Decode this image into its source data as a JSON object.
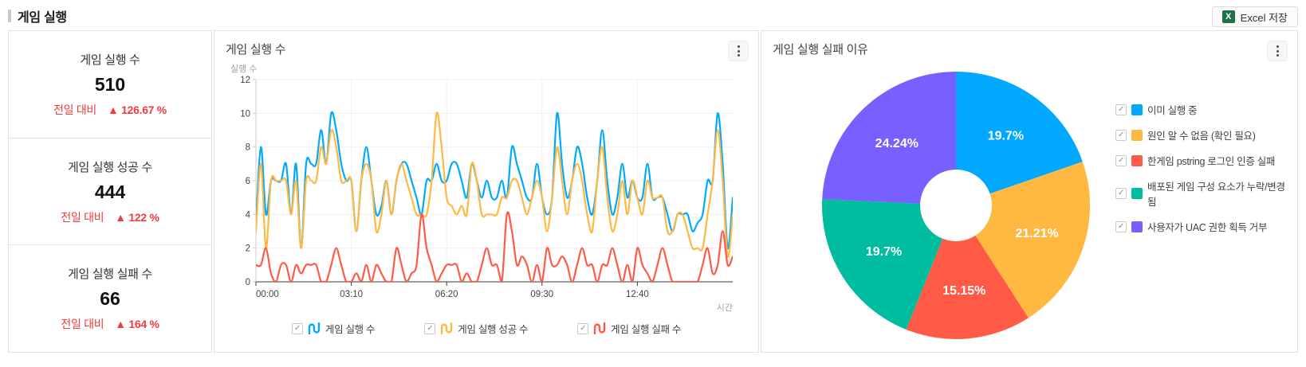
{
  "page": {
    "title": "게임 실행"
  },
  "toolbar": {
    "excel_button": "Excel 저장",
    "excel_icon_letter": "X"
  },
  "stats": [
    {
      "label": "게임 실행 수",
      "value": "510",
      "delta_label": "전일 대비",
      "delta": "▲ 126.67 %"
    },
    {
      "label": "게임 실행 성공 수",
      "value": "444",
      "delta_label": "전일 대비",
      "delta": "▲ 122 %"
    },
    {
      "label": "게임 실행 실패 수",
      "value": "66",
      "delta_label": "전일 대비",
      "delta": "▲ 164 %"
    }
  ],
  "colors": {
    "blue": "#00a9ff",
    "orange": "#ffb840",
    "red": "#ff5a46",
    "teal": "#00bd9f",
    "purple": "#785fff",
    "delta_red": "#f03c3c",
    "excel_green": "#1e7145"
  },
  "chart_data": [
    {
      "type": "line",
      "title": "게임 실행 수",
      "xlabel": "시간",
      "ylabel": "실행 수",
      "ylim": [
        0,
        12
      ],
      "yticks": [
        0,
        2,
        4,
        6,
        8,
        10,
        12
      ],
      "xticks": [
        "00:00",
        "03:10",
        "06:20",
        "09:30",
        "12:40"
      ],
      "xtick_index_step": 19,
      "x_interval_minutes": 10,
      "grid": true,
      "legend_position": "bottom",
      "series": [
        {
          "name": "게임 실행 수",
          "color": "#00a9ff",
          "values": [
            3.5,
            8,
            4,
            6,
            6,
            6,
            7,
            4,
            7,
            2,
            7,
            7,
            7,
            9,
            7,
            10,
            9,
            7,
            6,
            6,
            3,
            6,
            8,
            6,
            4,
            4.5,
            6,
            4,
            6,
            7,
            7,
            6,
            5,
            4,
            6,
            6,
            7,
            6,
            6,
            7,
            7,
            6,
            5,
            7,
            6,
            5,
            6,
            5,
            5,
            6,
            5,
            8,
            7,
            6,
            5,
            5,
            7,
            5,
            4,
            5,
            10,
            7,
            5,
            6,
            8,
            7,
            5,
            4,
            6,
            9,
            6,
            4,
            5,
            7,
            5,
            6,
            5,
            5,
            7,
            5,
            5,
            5,
            4,
            3,
            4,
            4,
            4,
            3,
            3.5,
            4,
            6,
            6,
            10,
            7,
            2,
            5
          ]
        },
        {
          "name": "게임 실행 성공 수",
          "color": "#ffb840",
          "values": [
            3,
            7,
            2,
            6,
            6,
            6,
            6,
            4,
            6,
            2,
            6,
            6,
            6,
            8,
            7,
            9,
            8,
            6,
            6,
            6,
            3,
            6,
            7,
            6,
            3,
            4,
            6,
            4,
            6,
            7,
            6,
            5,
            4,
            4,
            4,
            6,
            10,
            8,
            5,
            4.5,
            4,
            4.5,
            4,
            7,
            6,
            4,
            4,
            4,
            4,
            5,
            5,
            6,
            6,
            5,
            4,
            5,
            6,
            5,
            3,
            5,
            8,
            6,
            4,
            6,
            7,
            6,
            4,
            3,
            6,
            8,
            5,
            3,
            4,
            6,
            4,
            6,
            5,
            4,
            6,
            5,
            5,
            5,
            3,
            3,
            4,
            4,
            3,
            2,
            2,
            2,
            4,
            6,
            9,
            6,
            1.5,
            4
          ]
        },
        {
          "name": "게임 실행 실패 수",
          "color": "#ff5a46",
          "values": [
            1,
            1,
            2,
            0.5,
            0,
            1,
            1,
            0,
            1,
            0.5,
            1,
            1,
            1,
            0,
            0,
            1,
            2,
            1,
            0,
            0,
            0.5,
            0,
            1,
            0,
            1,
            0.5,
            0,
            0,
            2,
            1,
            0,
            0.5,
            1,
            4,
            2,
            1,
            0,
            0.5,
            1,
            1,
            1,
            0,
            0.5,
            0,
            0,
            1,
            2,
            1,
            1,
            0,
            4,
            3,
            1,
            1.5,
            1,
            0,
            1,
            0,
            2,
            1,
            1,
            1.5,
            1,
            0,
            1,
            2,
            1,
            1,
            0,
            1,
            1,
            2,
            1,
            0,
            1,
            0,
            2,
            1,
            0.5,
            0,
            1,
            2,
            1,
            0,
            0,
            0,
            0,
            0,
            0,
            1,
            2,
            0.5,
            1,
            3,
            1,
            1.5
          ]
        }
      ]
    },
    {
      "type": "pie",
      "title": "게임 실행 실패 이유",
      "donut": true,
      "legend_position": "right",
      "slices": [
        {
          "label": "이미 실행 중",
          "percent": 19.7,
          "display": "19.7%",
          "color": "#00a9ff"
        },
        {
          "label": "원인 알 수 없음 (확인 필요)",
          "percent": 21.21,
          "display": "21.21%",
          "color": "#ffb840"
        },
        {
          "label": "한게임 pstring 로그인 인증 실패",
          "percent": 15.15,
          "display": "15.15%",
          "color": "#ff5a46"
        },
        {
          "label": "배포된 게임 구성 요소가 누락/변경됨",
          "percent": 19.7,
          "display": "19.7%",
          "color": "#00bd9f"
        },
        {
          "label": "사용자가 UAC 권한 획득 거부",
          "percent": 24.24,
          "display": "24.24%",
          "color": "#785fff"
        }
      ]
    }
  ]
}
